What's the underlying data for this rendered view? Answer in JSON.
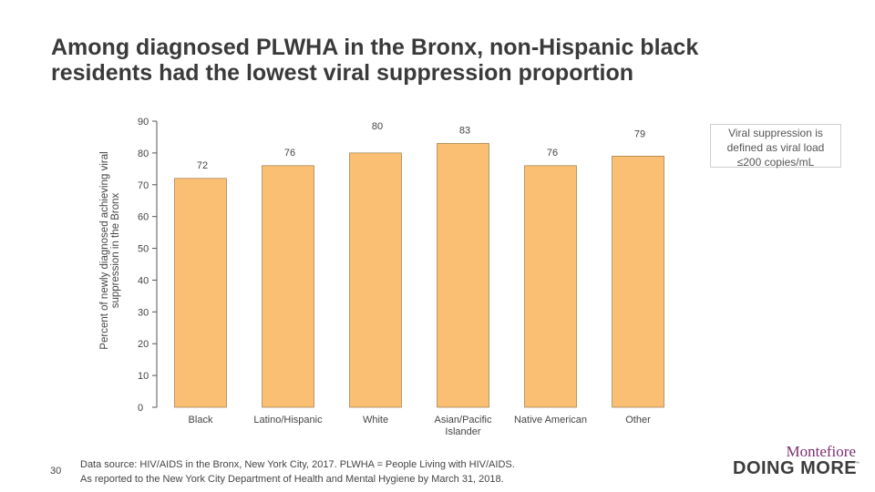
{
  "slide": {
    "title_line1": "Among diagnosed PLWHA in the Bronx, non-Hispanic black",
    "title_line2": "residents had the lowest viral suppression proportion",
    "note_line1": "Viral suppression is",
    "note_line2": "defined as viral load",
    "note_line3": "≤200 copies/mL",
    "source_line1": "Data source: HIV/AIDS in the Bronx, New York City, 2017. PLWHA = People Living with HIV/AIDS.",
    "source_line2": "As reported to the New York City Department of Health and Mental Hygiene by March 31, 2018.",
    "page_number": "30",
    "logo_top": "Montefiore",
    "logo_bottom": "DOING MORE",
    "logo_tm": "™"
  },
  "chart_data": {
    "type": "bar",
    "title": "",
    "xlabel": "",
    "ylabel_line1": "Percent of newly diagnosed achieving viral",
    "ylabel_line2": "suppression in the Bronx",
    "categories": [
      [
        "Black"
      ],
      [
        "Latino/Hispanic"
      ],
      [
        "White"
      ],
      [
        "Asian/Pacific",
        "Islander"
      ],
      [
        "Native American"
      ],
      [
        "Other"
      ]
    ],
    "values": [
      72,
      76,
      80,
      83,
      76,
      79
    ],
    "ylim": [
      0,
      90
    ],
    "yticks": [
      0,
      10,
      20,
      30,
      40,
      50,
      60,
      70,
      80,
      90
    ],
    "bar_color": "#fbbf73",
    "bar_stroke": "#8a6a3a",
    "grid": false,
    "legend": "none"
  }
}
